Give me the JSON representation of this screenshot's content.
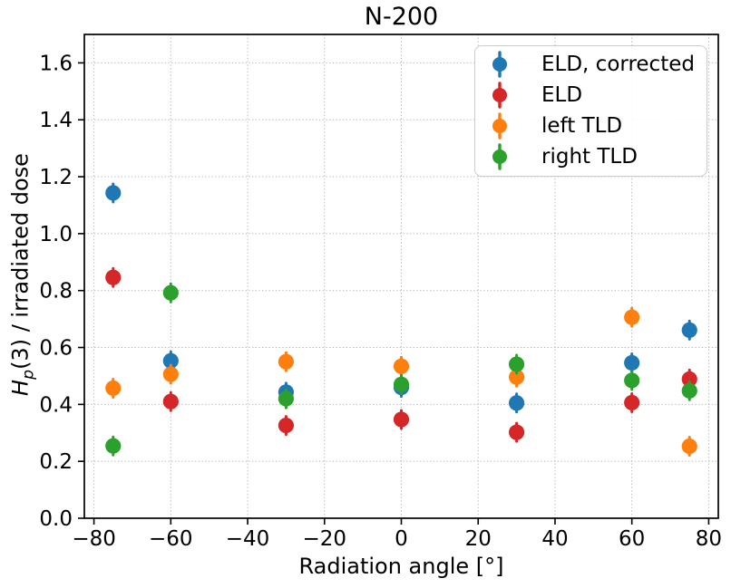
{
  "figure": {
    "title": "N-200",
    "xlabel": "Radiation angle [°]",
    "ylabel_parts": {
      "var": "H",
      "sub": "p",
      "rest": "(3) / irradiated dose"
    }
  },
  "chart_data": {
    "type": "scatter",
    "title": "N-200",
    "xlabel": "Radiation angle [°]",
    "ylabel": "H_p(3) / irradiated dose",
    "x": [
      -75,
      -60,
      -30,
      0,
      30,
      60,
      75
    ],
    "series": [
      {
        "name": "ELD, corrected",
        "color": "#1f77b4",
        "values": [
          1.143,
          0.553,
          0.443,
          0.46,
          0.405,
          0.546,
          0.661
        ]
      },
      {
        "name": "ELD",
        "color": "#d62728",
        "values": [
          0.846,
          0.41,
          0.326,
          0.347,
          0.302,
          0.406,
          0.489
        ]
      },
      {
        "name": "left TLD",
        "color": "#ff7f0e",
        "values": [
          0.457,
          0.506,
          0.55,
          0.534,
          0.496,
          0.706,
          0.253
        ]
      },
      {
        "name": "right TLD",
        "color": "#2ca02c",
        "values": [
          0.254,
          0.792,
          0.42,
          0.47,
          0.541,
          0.484,
          0.448
        ]
      }
    ],
    "xlim": [
      -82.5,
      82.5
    ],
    "ylim": [
      0,
      1.7
    ],
    "xticks": [
      {
        "v": -80,
        "label": "−80"
      },
      {
        "v": -60,
        "label": "−60"
      },
      {
        "v": -40,
        "label": "−40"
      },
      {
        "v": -20,
        "label": "−20"
      },
      {
        "v": 0,
        "label": "0"
      },
      {
        "v": 20,
        "label": "20"
      },
      {
        "v": 40,
        "label": "40"
      },
      {
        "v": 60,
        "label": "60"
      },
      {
        "v": 80,
        "label": "80"
      }
    ],
    "yticks": [
      {
        "v": 0.0,
        "label": "0.0"
      },
      {
        "v": 0.2,
        "label": "0.2"
      },
      {
        "v": 0.4,
        "label": "0.4"
      },
      {
        "v": 0.6,
        "label": "0.6"
      },
      {
        "v": 0.8,
        "label": "0.8"
      },
      {
        "v": 1.0,
        "label": "1.0"
      },
      {
        "v": 1.2,
        "label": "1.2"
      },
      {
        "v": 1.4,
        "label": "1.4"
      },
      {
        "v": 1.6,
        "label": "1.6"
      }
    ],
    "grid": true,
    "grid_style": "dotted",
    "grid_color": "#b5b5b5",
    "frame_color": "#000000",
    "marker_style": "errorbar-dot",
    "legend_position": "upper right",
    "legend_entries": [
      "ELD, corrected",
      "ELD",
      "left TLD",
      "right TLD"
    ]
  }
}
